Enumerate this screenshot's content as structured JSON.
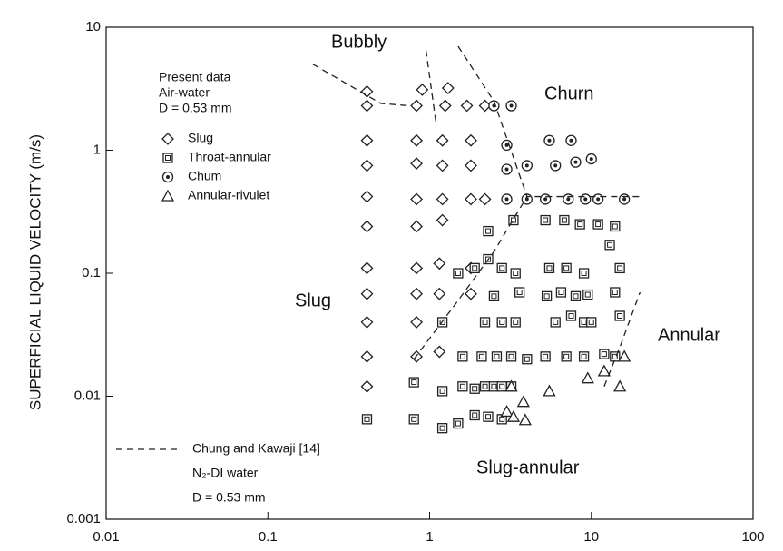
{
  "chart_data": {
    "type": "scatter",
    "y_label": "SUPERFICIAL LIQUID VELOCITY (m/s)",
    "x_scale": "log",
    "y_scale": "log",
    "xlim": [
      0.01,
      100
    ],
    "ylim": [
      0.001,
      10
    ],
    "xticks": [
      0.01,
      0.1,
      1,
      10,
      100
    ],
    "yticks": [
      0.001,
      0.01,
      0.1,
      1,
      10
    ],
    "legend_title": [
      "Present data",
      "Air-water",
      "D = 0.53 mm"
    ],
    "series": [
      {
        "name": "Slug",
        "marker": "diamond",
        "color": "#222",
        "x": [
          0.41,
          0.41,
          0.41,
          0.41,
          0.41,
          0.41,
          0.41,
          0.41,
          0.41,
          0.41,
          0.41,
          0.83,
          0.83,
          0.83,
          0.83,
          0.83,
          0.83,
          0.83,
          0.83,
          0.83,
          0.9,
          1.3,
          1.25,
          1.2,
          1.2,
          1.2,
          1.2,
          1.15,
          1.15,
          1.15,
          1.7,
          1.8,
          1.8,
          1.8,
          1.8,
          1.8,
          2.2,
          2.2
        ],
        "y": [
          3.0,
          2.3,
          1.2,
          0.75,
          0.42,
          0.24,
          0.11,
          0.068,
          0.04,
          0.021,
          0.012,
          2.3,
          1.2,
          0.78,
          0.4,
          0.24,
          0.11,
          0.068,
          0.04,
          0.021,
          3.1,
          3.2,
          2.3,
          1.2,
          0.75,
          0.4,
          0.27,
          0.12,
          0.068,
          0.023,
          2.3,
          1.2,
          0.75,
          0.4,
          0.11,
          0.068,
          2.3,
          0.4
        ]
      },
      {
        "name": "Throat-annular",
        "marker": "boxed",
        "color": "#222",
        "x": [
          0.41,
          0.8,
          1.2,
          1.5,
          1.9,
          2.3,
          2.8,
          0.8,
          1.2,
          1.6,
          1.9,
          2.2,
          2.5,
          2.8,
          3.2,
          1.2,
          1.5,
          1.9,
          2.3,
          2.8,
          3.4,
          2.3,
          3.3,
          5.2,
          6.8,
          8.5,
          11,
          14,
          13,
          5.5,
          7,
          9,
          15,
          2.2,
          2.8,
          3.4,
          2.5,
          3.6,
          5.3,
          6.5,
          8,
          9.5,
          14,
          6,
          7.5,
          9,
          10,
          15,
          1.6,
          2.1,
          2.6,
          3.2,
          4.0,
          5.2,
          7,
          9,
          12,
          14
        ],
        "y": [
          0.0065,
          0.0065,
          0.0055,
          0.006,
          0.007,
          0.0068,
          0.0065,
          0.013,
          0.011,
          0.012,
          0.0115,
          0.012,
          0.012,
          0.012,
          0.012,
          0.04,
          0.1,
          0.11,
          0.13,
          0.11,
          0.1,
          0.22,
          0.27,
          0.27,
          0.27,
          0.25,
          0.25,
          0.24,
          0.17,
          0.11,
          0.11,
          0.1,
          0.11,
          0.04,
          0.04,
          0.04,
          0.065,
          0.07,
          0.065,
          0.07,
          0.065,
          0.067,
          0.07,
          0.04,
          0.045,
          0.04,
          0.04,
          0.045,
          0.021,
          0.021,
          0.021,
          0.021,
          0.02,
          0.021,
          0.021,
          0.021,
          0.022,
          0.021
        ]
      },
      {
        "name": "Chum",
        "marker": "circle",
        "color": "#222",
        "x": [
          2.5,
          3.2,
          3.0,
          5.5,
          7.5,
          3.0,
          4,
          6,
          8,
          10,
          3.0,
          4.0,
          5.2,
          7.2,
          9.2,
          11,
          16
        ],
        "y": [
          2.3,
          2.3,
          1.1,
          1.2,
          1.2,
          0.7,
          0.75,
          0.75,
          0.8,
          0.85,
          0.4,
          0.4,
          0.4,
          0.4,
          0.4,
          0.4,
          0.4
        ]
      },
      {
        "name": "Annular-rivulet",
        "marker": "triangle",
        "color": "#222",
        "x": [
          3.0,
          3.3,
          3.9,
          3.8,
          5.5,
          9.5,
          12,
          16,
          15,
          3.2
        ],
        "y": [
          0.0075,
          0.0068,
          0.0064,
          0.009,
          0.011,
          0.014,
          0.016,
          0.021,
          0.012,
          0.012
        ]
      }
    ],
    "boundaries": {
      "name": "Chung and Kawaji [14]",
      "details": [
        "N₂-DI water",
        "D = 0.53 mm"
      ],
      "lines": [
        {
          "x": [
            0.19,
            0.5,
            0.75
          ],
          "y": [
            5,
            2.4,
            2.3
          ]
        },
        {
          "x": [
            0.95,
            1.1
          ],
          "y": [
            6.5,
            1.6
          ]
        },
        {
          "x": [
            1.5,
            2.5,
            4,
            20
          ],
          "y": [
            7,
            2.5,
            0.42,
            0.42
          ]
        },
        {
          "x": [
            0.8,
            1.5,
            2.5,
            4
          ],
          "y": [
            0.02,
            0.06,
            0.15,
            0.42
          ]
        },
        {
          "x": [
            12,
            15,
            20
          ],
          "y": [
            0.012,
            0.025,
            0.07
          ]
        }
      ]
    },
    "annotations": [
      "Bubbly",
      "Churn",
      "Slug",
      "Annular",
      "Slug-annular"
    ]
  }
}
